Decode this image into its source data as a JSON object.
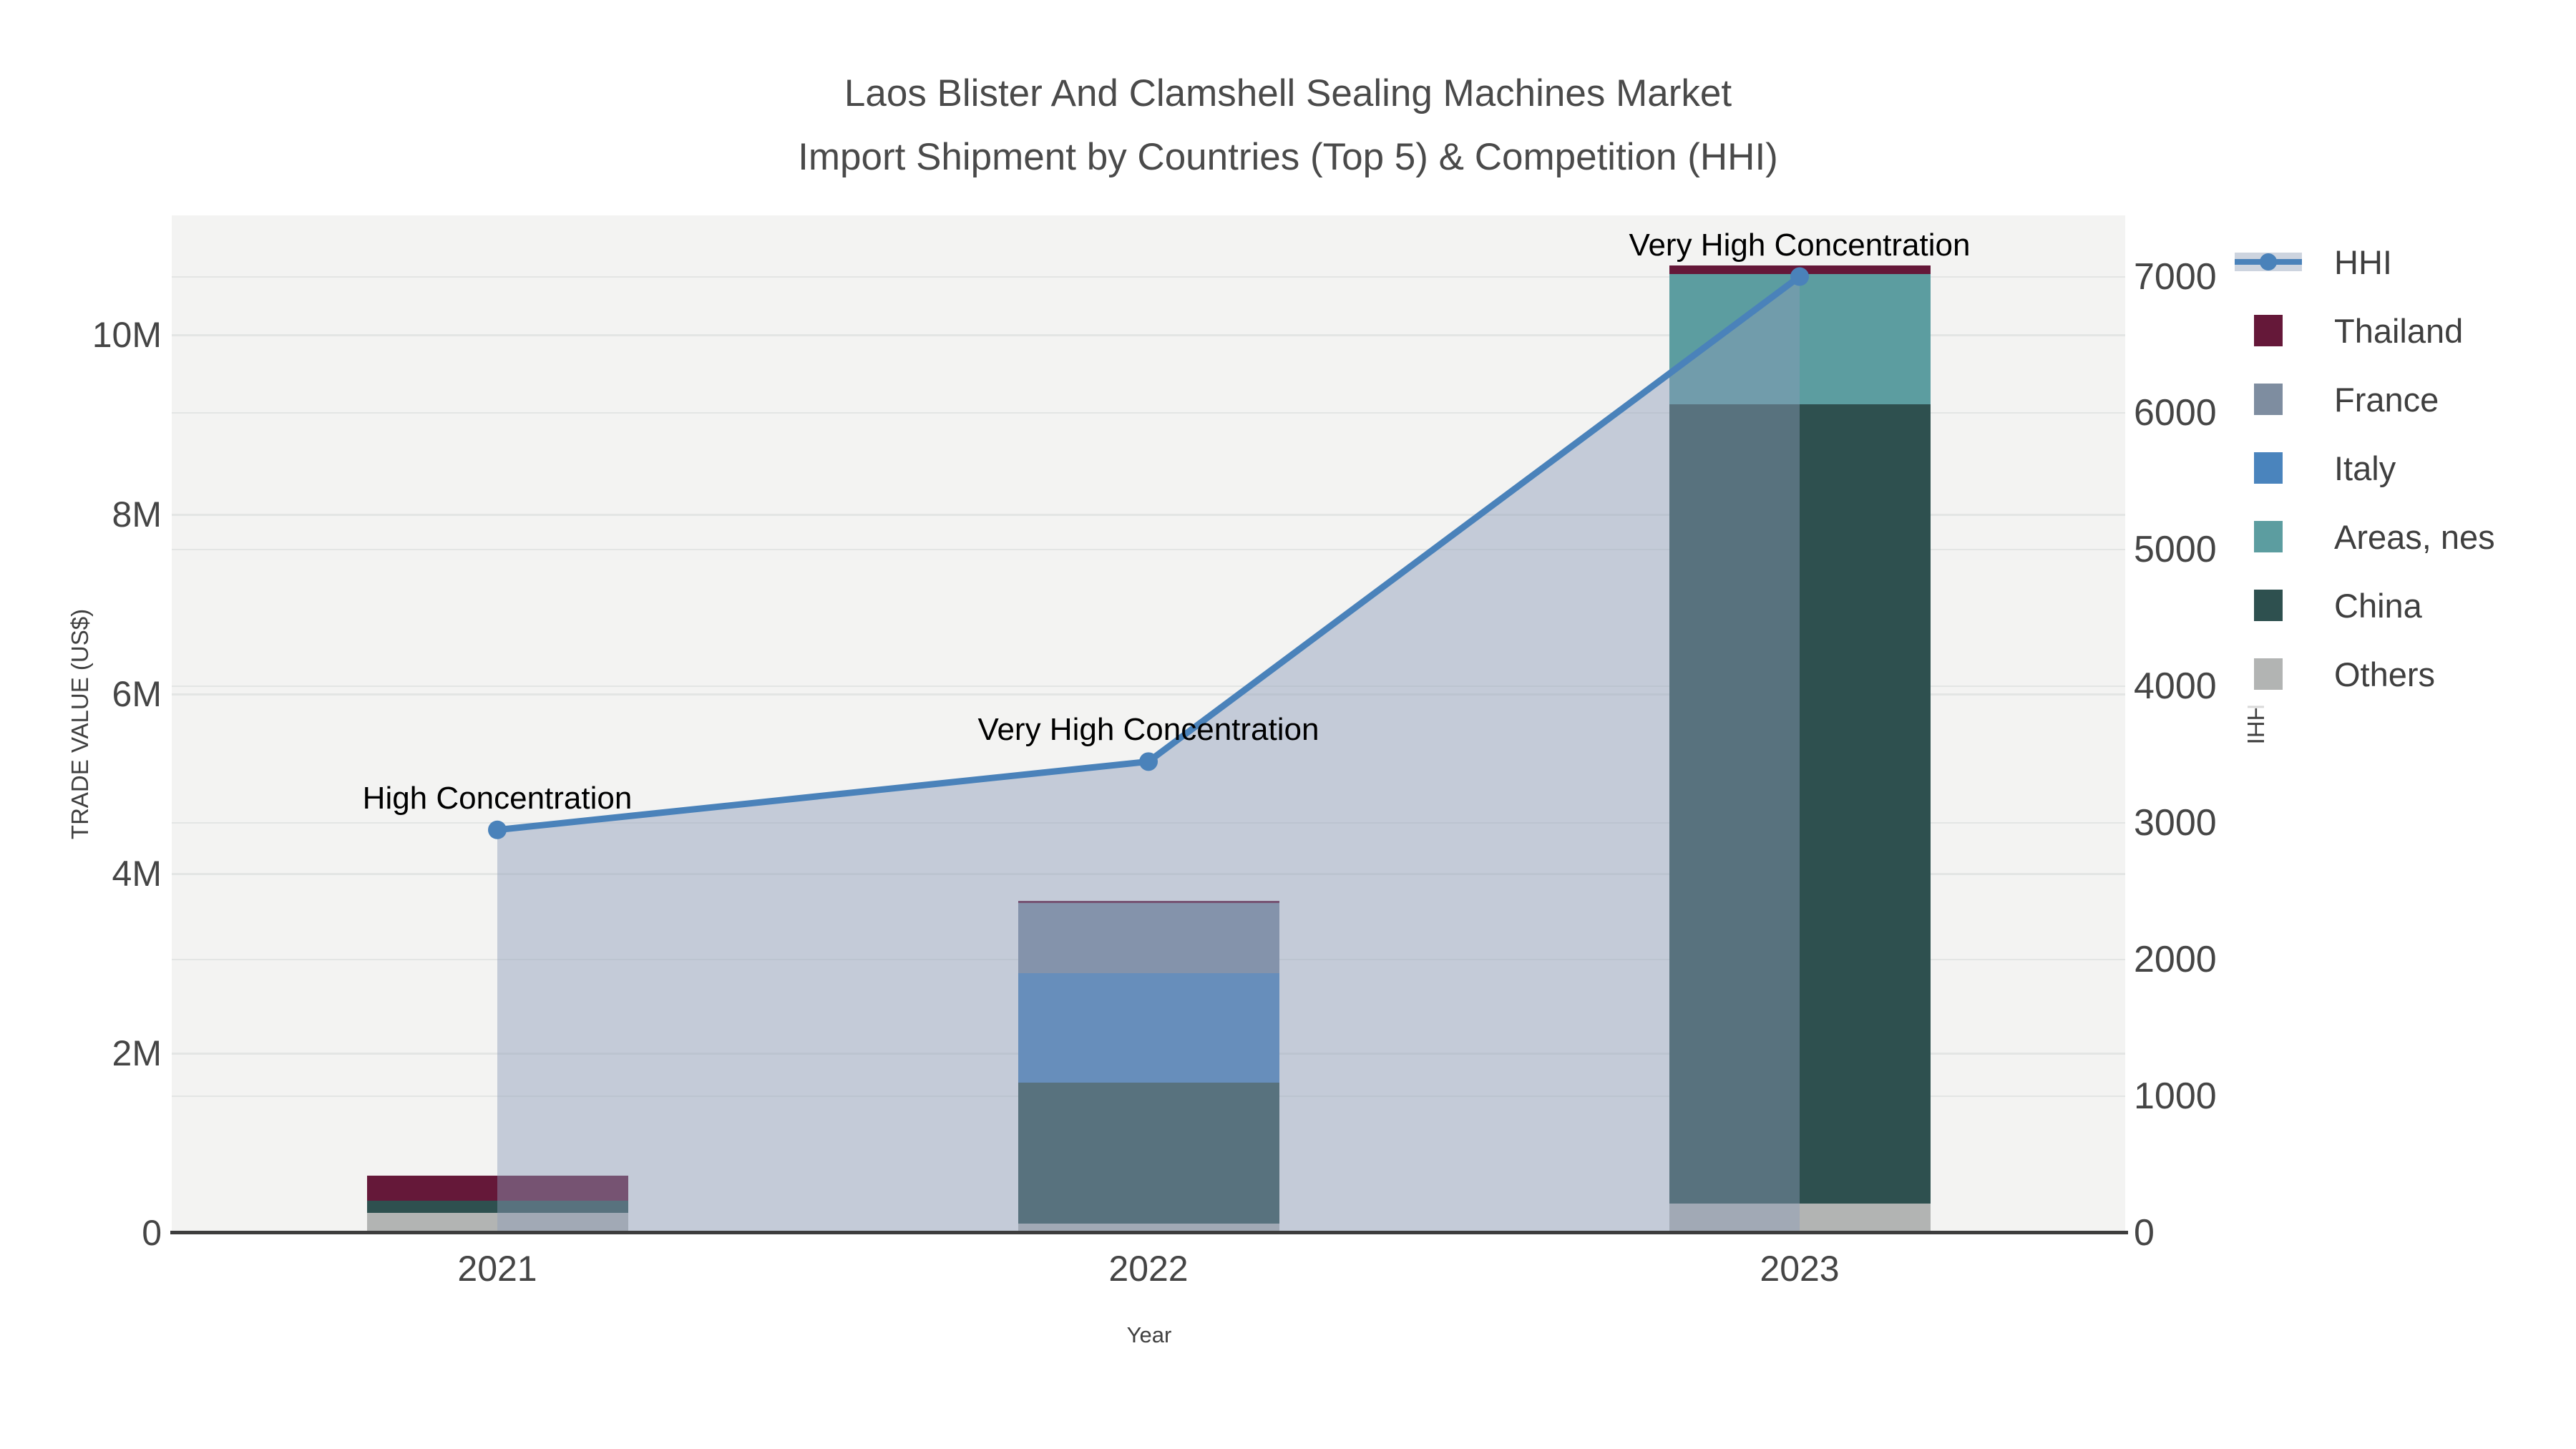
{
  "title": {
    "line1": "Laos Blister And Clamshell Sealing Machines Market",
    "line2": "Import Shipment by Countries (Top 5) & Competition (HHI)"
  },
  "x_axis": {
    "title": "Year",
    "categories": [
      "2021",
      "2022",
      "2023"
    ]
  },
  "y_left_axis": {
    "title": "TRADE VALUE (US$)",
    "ticks": [
      {
        "label": "0",
        "value": 0
      },
      {
        "label": "2M",
        "value": 2000000
      },
      {
        "label": "4M",
        "value": 4000000
      },
      {
        "label": "6M",
        "value": 6000000
      },
      {
        "label": "8M",
        "value": 8000000
      },
      {
        "label": "10M",
        "value": 10000000
      }
    ],
    "max": 11330000
  },
  "y_right_axis": {
    "title": "HHI",
    "ticks": [
      {
        "label": "0",
        "value": 0
      },
      {
        "label": "1000",
        "value": 1000
      },
      {
        "label": "2000",
        "value": 2000
      },
      {
        "label": "3000",
        "value": 3000
      },
      {
        "label": "4000",
        "value": 4000
      },
      {
        "label": "5000",
        "value": 5000
      },
      {
        "label": "6000",
        "value": 6000
      },
      {
        "label": "7000",
        "value": 7000
      }
    ],
    "max": 7448
  },
  "legend": {
    "items": [
      {
        "label": "HHI",
        "type": "line",
        "color": "#4a82ba",
        "band_color": "#cdd4df"
      },
      {
        "label": "Thailand",
        "type": "patch",
        "color": "#651839"
      },
      {
        "label": "France",
        "type": "patch",
        "color": "#7e8da0"
      },
      {
        "label": "Italy",
        "type": "patch",
        "color": "#4a84bd"
      },
      {
        "label": "Areas, nes",
        "type": "patch",
        "color": "#5c9da0"
      },
      {
        "label": "China",
        "type": "patch",
        "color": "#2e504f"
      },
      {
        "label": "Others",
        "type": "patch",
        "color": "#b2b4b3"
      }
    ]
  },
  "chart_data": {
    "type": "combo-stacked-bar-line",
    "title": "Laos Blister And Clamshell Sealing Machines Market Import Shipment by Countries (Top 5) & Competition (HHI)",
    "xlabel": "Year",
    "ylabel_left": "TRADE VALUE (US$)",
    "ylabel_right": "HHI",
    "ylim_left": [
      0,
      11330000
    ],
    "ylim_right": [
      0,
      7448
    ],
    "grid": true,
    "legend_position": "upper-right-outside",
    "categories": [
      "2021",
      "2022",
      "2023"
    ],
    "series": [
      {
        "name": "Others",
        "color": "#b2b4b3",
        "values": [
          220000,
          105000,
          330000
        ]
      },
      {
        "name": "China",
        "color": "#2e504f",
        "values": [
          135000,
          1570000,
          8900000
        ]
      },
      {
        "name": "Areas, nes",
        "color": "#5c9da0",
        "values": [
          0,
          0,
          1450000
        ]
      },
      {
        "name": "Italy",
        "color": "#4a84bd",
        "values": [
          0,
          1220000,
          0
        ]
      },
      {
        "name": "France",
        "color": "#7e8da0",
        "values": [
          0,
          780000,
          0
        ]
      },
      {
        "name": "Thailand",
        "color": "#651839",
        "values": [
          280000,
          25000,
          90000
        ]
      }
    ],
    "bar_totals": [
      635000,
      3700000,
      10770000
    ],
    "line": {
      "name": "HHI",
      "axis": "right",
      "color": "#4a82ba",
      "fill_color": "rgba(140,156,185,0.45)",
      "values": [
        2950,
        3450,
        7000
      ]
    },
    "annotations": [
      {
        "text": "High Concentration",
        "category": "2021"
      },
      {
        "text": "Very High Concentration",
        "category": "2022"
      },
      {
        "text": "Very High Concentration",
        "category": "2023"
      }
    ]
  },
  "colors": {
    "figure_bg": "#ffffff",
    "plot_bg": "#f3f3f2",
    "grid": "#e3e5e4",
    "axis_line": "#3d3d3d",
    "text": "#454545",
    "title_text": "#4a4a4a",
    "annotation_text": "#000000"
  }
}
